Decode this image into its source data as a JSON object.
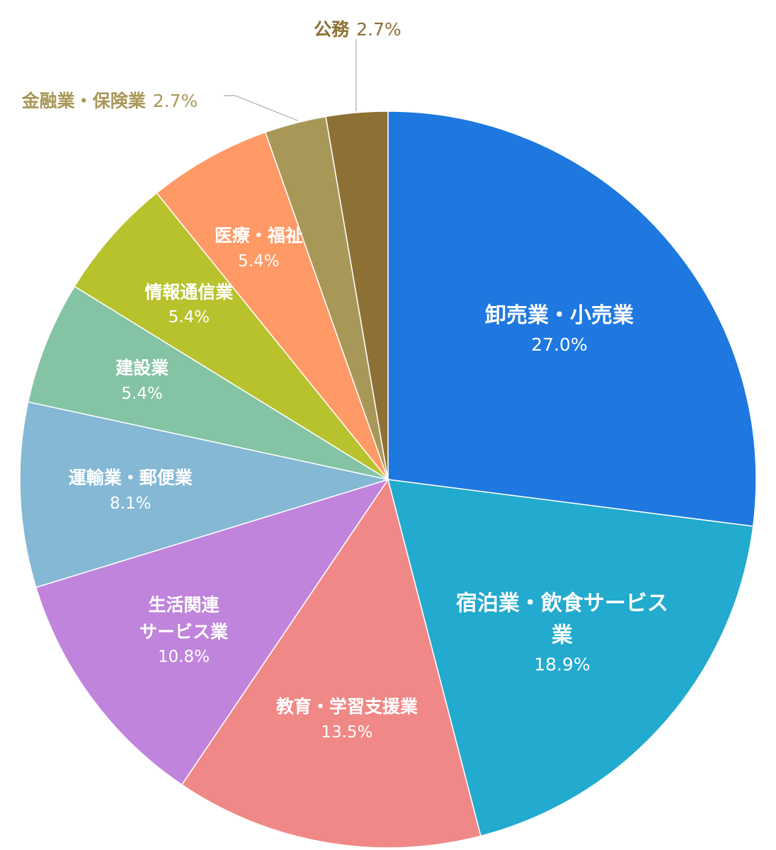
{
  "chart_data": {
    "type": "pie",
    "categories": [
      "卸売業・小売業",
      "宿泊業・飲食サービス業",
      "教育・学習支援業",
      "生活関連\nサービス業",
      "運輸業・郵便業",
      "建設業",
      "情報通信業",
      "医療・福祉",
      "金融業・保険業",
      "公務"
    ],
    "values": [
      27.0,
      18.9,
      13.5,
      10.8,
      8.1,
      5.4,
      5.4,
      5.4,
      2.7,
      2.7
    ],
    "value_labels": [
      "27.0%",
      "18.9%",
      "13.5%",
      "10.8%",
      "8.1%",
      "5.4%",
      "5.4%",
      "5.4%",
      "2.7%",
      "2.7%"
    ],
    "colors": [
      "#1e78e0",
      "#22aacf",
      "#f08887",
      "#c084dc",
      "#84b8d4",
      "#84c4a4",
      "#b8c22c",
      "#ff9966",
      "#a89858",
      "#8c7034"
    ]
  }
}
